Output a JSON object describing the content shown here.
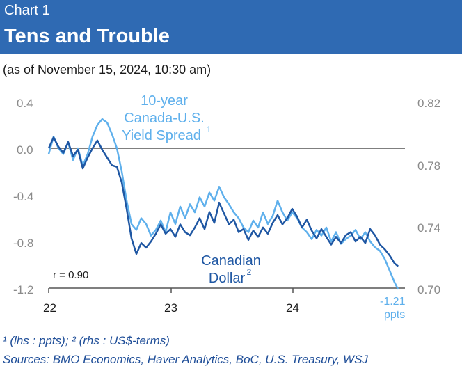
{
  "header": {
    "label": "Chart 1",
    "title": "Tens and Trouble"
  },
  "subtitle": "(as of November 15, 2024, 10:30 am)",
  "footnote": "¹ (lhs : ppts); ² (rhs : US$-terms)",
  "sources": "Sources: BMO Economics, Haver Analytics, BoC, U.S. Treasury, WSJ",
  "colors": {
    "header_bg": "#2f6ab3",
    "spread": "#5fb0ec",
    "cad": "#1f57a3",
    "zero_line": "#555555",
    "axis_text": "#8a8a8a"
  },
  "chart_data": {
    "type": "line",
    "x_tick_labels": [
      "22",
      "23",
      "24"
    ],
    "y_left": {
      "ticks": [
        "0.4",
        "0.0",
        "-0.4",
        "-0.8",
        "-1.2"
      ],
      "range": [
        -1.2,
        0.4
      ]
    },
    "y_right": {
      "ticks": [
        "0.82",
        "0.78",
        "0.74",
        "0.70"
      ],
      "range": [
        0.7,
        0.82
      ]
    },
    "annotations": {
      "spread_label": [
        "10-year",
        "Canada-U.S.",
        "Yield Spread"
      ],
      "spread_sup": "1",
      "cad_label": [
        "Canadian",
        "Dollar"
      ],
      "cad_sup": "2",
      "corr": "r = 0.90",
      "end_value": "-1.21",
      "end_unit": "ppts"
    },
    "series": [
      {
        "axis": "left",
        "x": [
          2022.0,
          2022.04,
          2022.08,
          2022.12,
          2022.16,
          2022.2,
          2022.24,
          2022.28,
          2022.32,
          2022.36,
          2022.4,
          2022.44,
          2022.48,
          2022.52,
          2022.56,
          2022.6,
          2022.64,
          2022.68,
          2022.72,
          2022.76,
          2022.8,
          2022.84,
          2022.88,
          2022.92,
          2022.96,
          2023.0,
          2023.04,
          2023.08,
          2023.12,
          2023.16,
          2023.2,
          2023.24,
          2023.28,
          2023.32,
          2023.36,
          2023.4,
          2023.44,
          2023.48,
          2023.52,
          2023.56,
          2023.6,
          2023.64,
          2023.68,
          2023.72,
          2023.76,
          2023.8,
          2023.84,
          2023.88,
          2023.92,
          2023.96,
          2024.0,
          2024.04,
          2024.08,
          2024.12,
          2024.16,
          2024.2,
          2024.24,
          2024.28,
          2024.32,
          2024.36,
          2024.4,
          2024.44,
          2024.48,
          2024.52,
          2024.56,
          2024.6,
          2024.64,
          2024.68,
          2024.72,
          2024.76,
          2024.8,
          2024.84,
          2024.87
        ],
        "values": [
          -0.05,
          0.1,
          0.0,
          -0.05,
          0.05,
          -0.1,
          0.0,
          -0.15,
          -0.05,
          0.1,
          0.2,
          0.25,
          0.22,
          0.12,
          0.0,
          -0.2,
          -0.45,
          -0.65,
          -0.7,
          -0.6,
          -0.65,
          -0.75,
          -0.7,
          -0.62,
          -0.72,
          -0.55,
          -0.65,
          -0.5,
          -0.6,
          -0.48,
          -0.55,
          -0.42,
          -0.5,
          -0.38,
          -0.45,
          -0.33,
          -0.42,
          -0.48,
          -0.55,
          -0.6,
          -0.68,
          -0.72,
          -0.62,
          -0.68,
          -0.55,
          -0.65,
          -0.58,
          -0.45,
          -0.55,
          -0.62,
          -0.55,
          -0.6,
          -0.68,
          -0.72,
          -0.78,
          -0.7,
          -0.75,
          -0.68,
          -0.8,
          -0.72,
          -0.82,
          -0.78,
          -0.75,
          -0.7,
          -0.78,
          -0.72,
          -0.8,
          -0.85,
          -0.88,
          -0.95,
          -1.05,
          -1.15,
          -1.21
        ]
      },
      {
        "axis": "right",
        "x": [
          2022.0,
          2022.04,
          2022.08,
          2022.12,
          2022.16,
          2022.2,
          2022.24,
          2022.28,
          2022.32,
          2022.36,
          2022.4,
          2022.44,
          2022.48,
          2022.52,
          2022.56,
          2022.6,
          2022.64,
          2022.68,
          2022.72,
          2022.76,
          2022.8,
          2022.84,
          2022.88,
          2022.92,
          2022.96,
          2023.0,
          2023.04,
          2023.08,
          2023.12,
          2023.16,
          2023.2,
          2023.24,
          2023.28,
          2023.32,
          2023.36,
          2023.4,
          2023.44,
          2023.48,
          2023.52,
          2023.56,
          2023.6,
          2023.64,
          2023.68,
          2023.72,
          2023.76,
          2023.8,
          2023.84,
          2023.88,
          2023.92,
          2023.96,
          2024.0,
          2024.04,
          2024.08,
          2024.12,
          2024.16,
          2024.2,
          2024.24,
          2024.28,
          2024.32,
          2024.36,
          2024.4,
          2024.44,
          2024.48,
          2024.52,
          2024.56,
          2024.6,
          2024.64,
          2024.68,
          2024.72,
          2024.76,
          2024.8,
          2024.84,
          2024.87
        ],
        "values": [
          0.79,
          0.797,
          0.791,
          0.787,
          0.794,
          0.785,
          0.789,
          0.777,
          0.784,
          0.79,
          0.795,
          0.789,
          0.784,
          0.779,
          0.778,
          0.768,
          0.751,
          0.732,
          0.722,
          0.729,
          0.726,
          0.73,
          0.735,
          0.741,
          0.735,
          0.738,
          0.733,
          0.741,
          0.736,
          0.734,
          0.739,
          0.745,
          0.738,
          0.749,
          0.742,
          0.755,
          0.748,
          0.741,
          0.744,
          0.736,
          0.738,
          0.731,
          0.737,
          0.733,
          0.739,
          0.735,
          0.742,
          0.747,
          0.741,
          0.745,
          0.751,
          0.746,
          0.739,
          0.744,
          0.737,
          0.732,
          0.738,
          0.733,
          0.728,
          0.733,
          0.729,
          0.734,
          0.736,
          0.73,
          0.733,
          0.729,
          0.738,
          0.734,
          0.728,
          0.725,
          0.721,
          0.716,
          0.714
        ]
      }
    ]
  }
}
